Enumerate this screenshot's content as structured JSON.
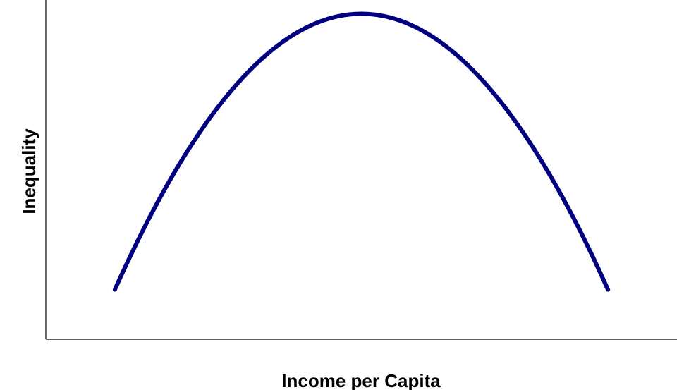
{
  "chart_data": {
    "type": "line",
    "title": "",
    "xlabel": "Income per Capita",
    "ylabel": "Inequality",
    "grid": false,
    "legend": "none",
    "series": [
      {
        "color": "#000080",
        "x": [
          0.0,
          0.1,
          0.2,
          0.3,
          0.4,
          0.5,
          0.6,
          0.7,
          0.8,
          0.9,
          1.0
        ],
        "y": [
          0.0,
          0.36,
          0.64,
          0.84,
          0.96,
          1.0,
          0.96,
          0.84,
          0.64,
          0.36,
          0.0
        ]
      }
    ],
    "xlim": [
      -0.14,
      1.14
    ],
    "ylim": [
      -0.18,
      1.05
    ]
  }
}
